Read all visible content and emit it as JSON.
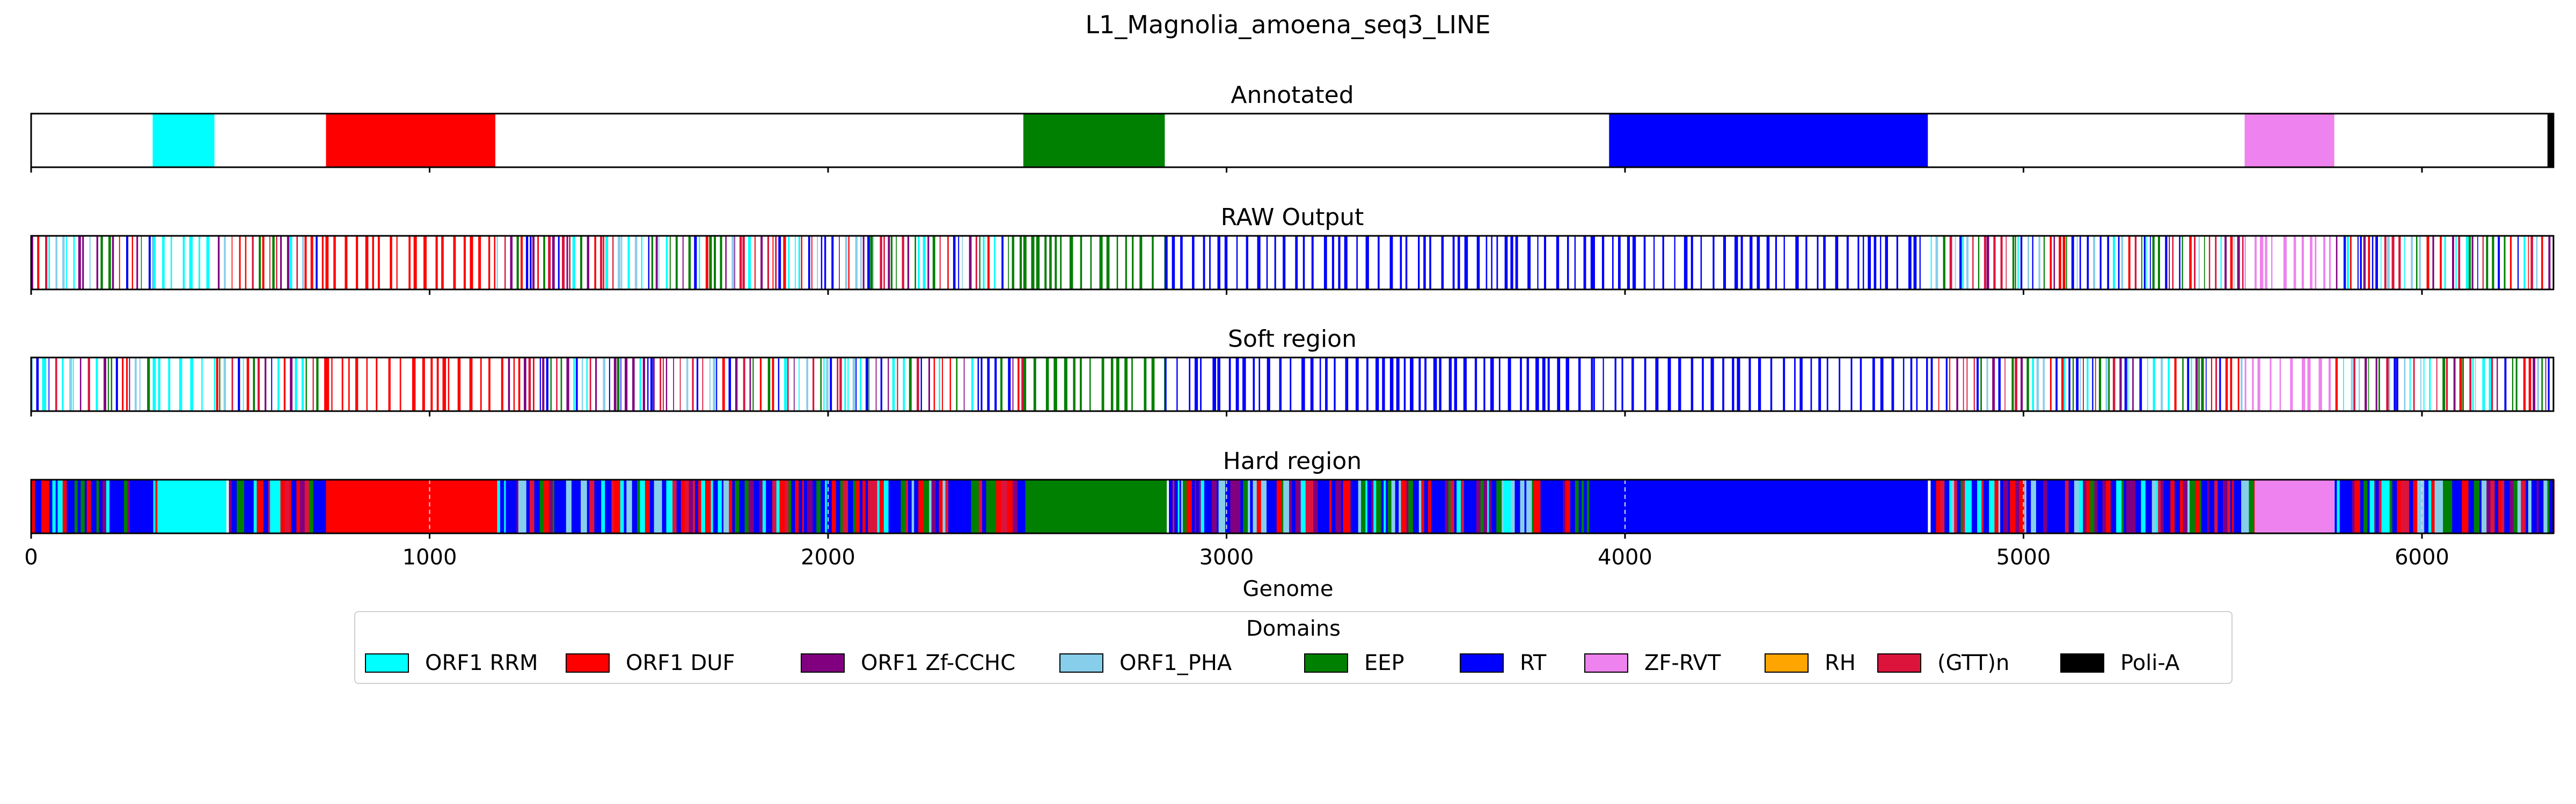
{
  "chart_data": {
    "type": "bar",
    "title": "L1_Magnolia_amoena_seq3_LINE",
    "xlabel": "Genome",
    "xlim": [
      0,
      6330
    ],
    "xticks": [
      "0",
      "1000",
      "2000",
      "3000",
      "4000",
      "5000",
      "6000"
    ],
    "legend": {
      "title": "Domains",
      "placement": "bottom-center"
    },
    "domains": [
      {
        "name": "ORF1 RRM",
        "color": "#00ffff"
      },
      {
        "name": "ORF1 DUF",
        "color": "#ff0000"
      },
      {
        "name": "ORF1 Zf-CCHC",
        "color": "#800080"
      },
      {
        "name": "ORF1_PHA",
        "color": "#87ceeb"
      },
      {
        "name": "EEP",
        "color": "#008000"
      },
      {
        "name": "RT",
        "color": "#0000ff"
      },
      {
        "name": "ZF-RVT",
        "color": "#ee82ee"
      },
      {
        "name": "RH",
        "color": "#ffa500"
      },
      {
        "name": "(GTT)n",
        "color": "#dc143c"
      },
      {
        "name": "Poli-A",
        "color": "#000000"
      }
    ],
    "panels": [
      {
        "title": "Annotated",
        "segments": [
          {
            "domain": "ORF1 RRM",
            "start": 305,
            "end": 460
          },
          {
            "domain": "ORF1 DUF",
            "start": 740,
            "end": 1165
          },
          {
            "domain": "EEP",
            "start": 2490,
            "end": 2845
          },
          {
            "domain": "RT",
            "start": 3960,
            "end": 4760
          },
          {
            "domain": "ZF-RVT",
            "start": 5555,
            "end": 5780
          },
          {
            "domain": "Poli-A",
            "start": 6315,
            "end": 6330
          }
        ]
      },
      {
        "title": "RAW Output",
        "style": "sparse",
        "blocks": [
          {
            "domain": "ORF1 RRM",
            "start": 305,
            "end": 460
          },
          {
            "domain": "ORF1 DUF",
            "start": 740,
            "end": 1165
          },
          {
            "domain": "EEP",
            "start": 2490,
            "end": 2845
          },
          {
            "domain": "RT",
            "start": 2845,
            "end": 3920
          },
          {
            "domain": "RT",
            "start": 3920,
            "end": 4760
          },
          {
            "domain": "ZF-RVT",
            "start": 5555,
            "end": 5780
          }
        ],
        "noise_domains": [
          "RT",
          "ORF1_PHA",
          "ORF1 Zf-CCHC",
          "EEP",
          "ORF1 DUF",
          "ORF1 RRM",
          "(GTT)n"
        ]
      },
      {
        "title": "Soft region",
        "style": "sparse",
        "blocks": [
          {
            "domain": "ORF1 RRM",
            "start": 305,
            "end": 460
          },
          {
            "domain": "ORF1 DUF",
            "start": 740,
            "end": 1165
          },
          {
            "domain": "EEP",
            "start": 2490,
            "end": 2845
          },
          {
            "domain": "RT",
            "start": 2845,
            "end": 3920
          },
          {
            "domain": "RT",
            "start": 3920,
            "end": 4760
          },
          {
            "domain": "ZF-RVT",
            "start": 5555,
            "end": 5780
          }
        ],
        "noise_domains": [
          "RT",
          "ORF1_PHA",
          "ORF1 Zf-CCHC",
          "EEP",
          "ORF1 DUF",
          "ORF1 RRM",
          "(GTT)n"
        ]
      },
      {
        "title": "Hard region",
        "style": "dense",
        "blocks": [
          {
            "domain": "ORF1 RRM",
            "start": 320,
            "end": 490
          },
          {
            "domain": "ORF1 DUF",
            "start": 740,
            "end": 1170
          },
          {
            "domain": "EEP",
            "start": 2495,
            "end": 2850
          },
          {
            "domain": "RT",
            "start": 3910,
            "end": 4760
          },
          {
            "domain": "ZF-RVT",
            "start": 5580,
            "end": 5780
          }
        ],
        "noise_domains": [
          "RT",
          "ORF1_PHA",
          "ORF1 Zf-CCHC",
          "EEP",
          "ORF1 DUF",
          "ORF1 RRM",
          "(GTT)n",
          "RT",
          "RT"
        ]
      }
    ]
  }
}
